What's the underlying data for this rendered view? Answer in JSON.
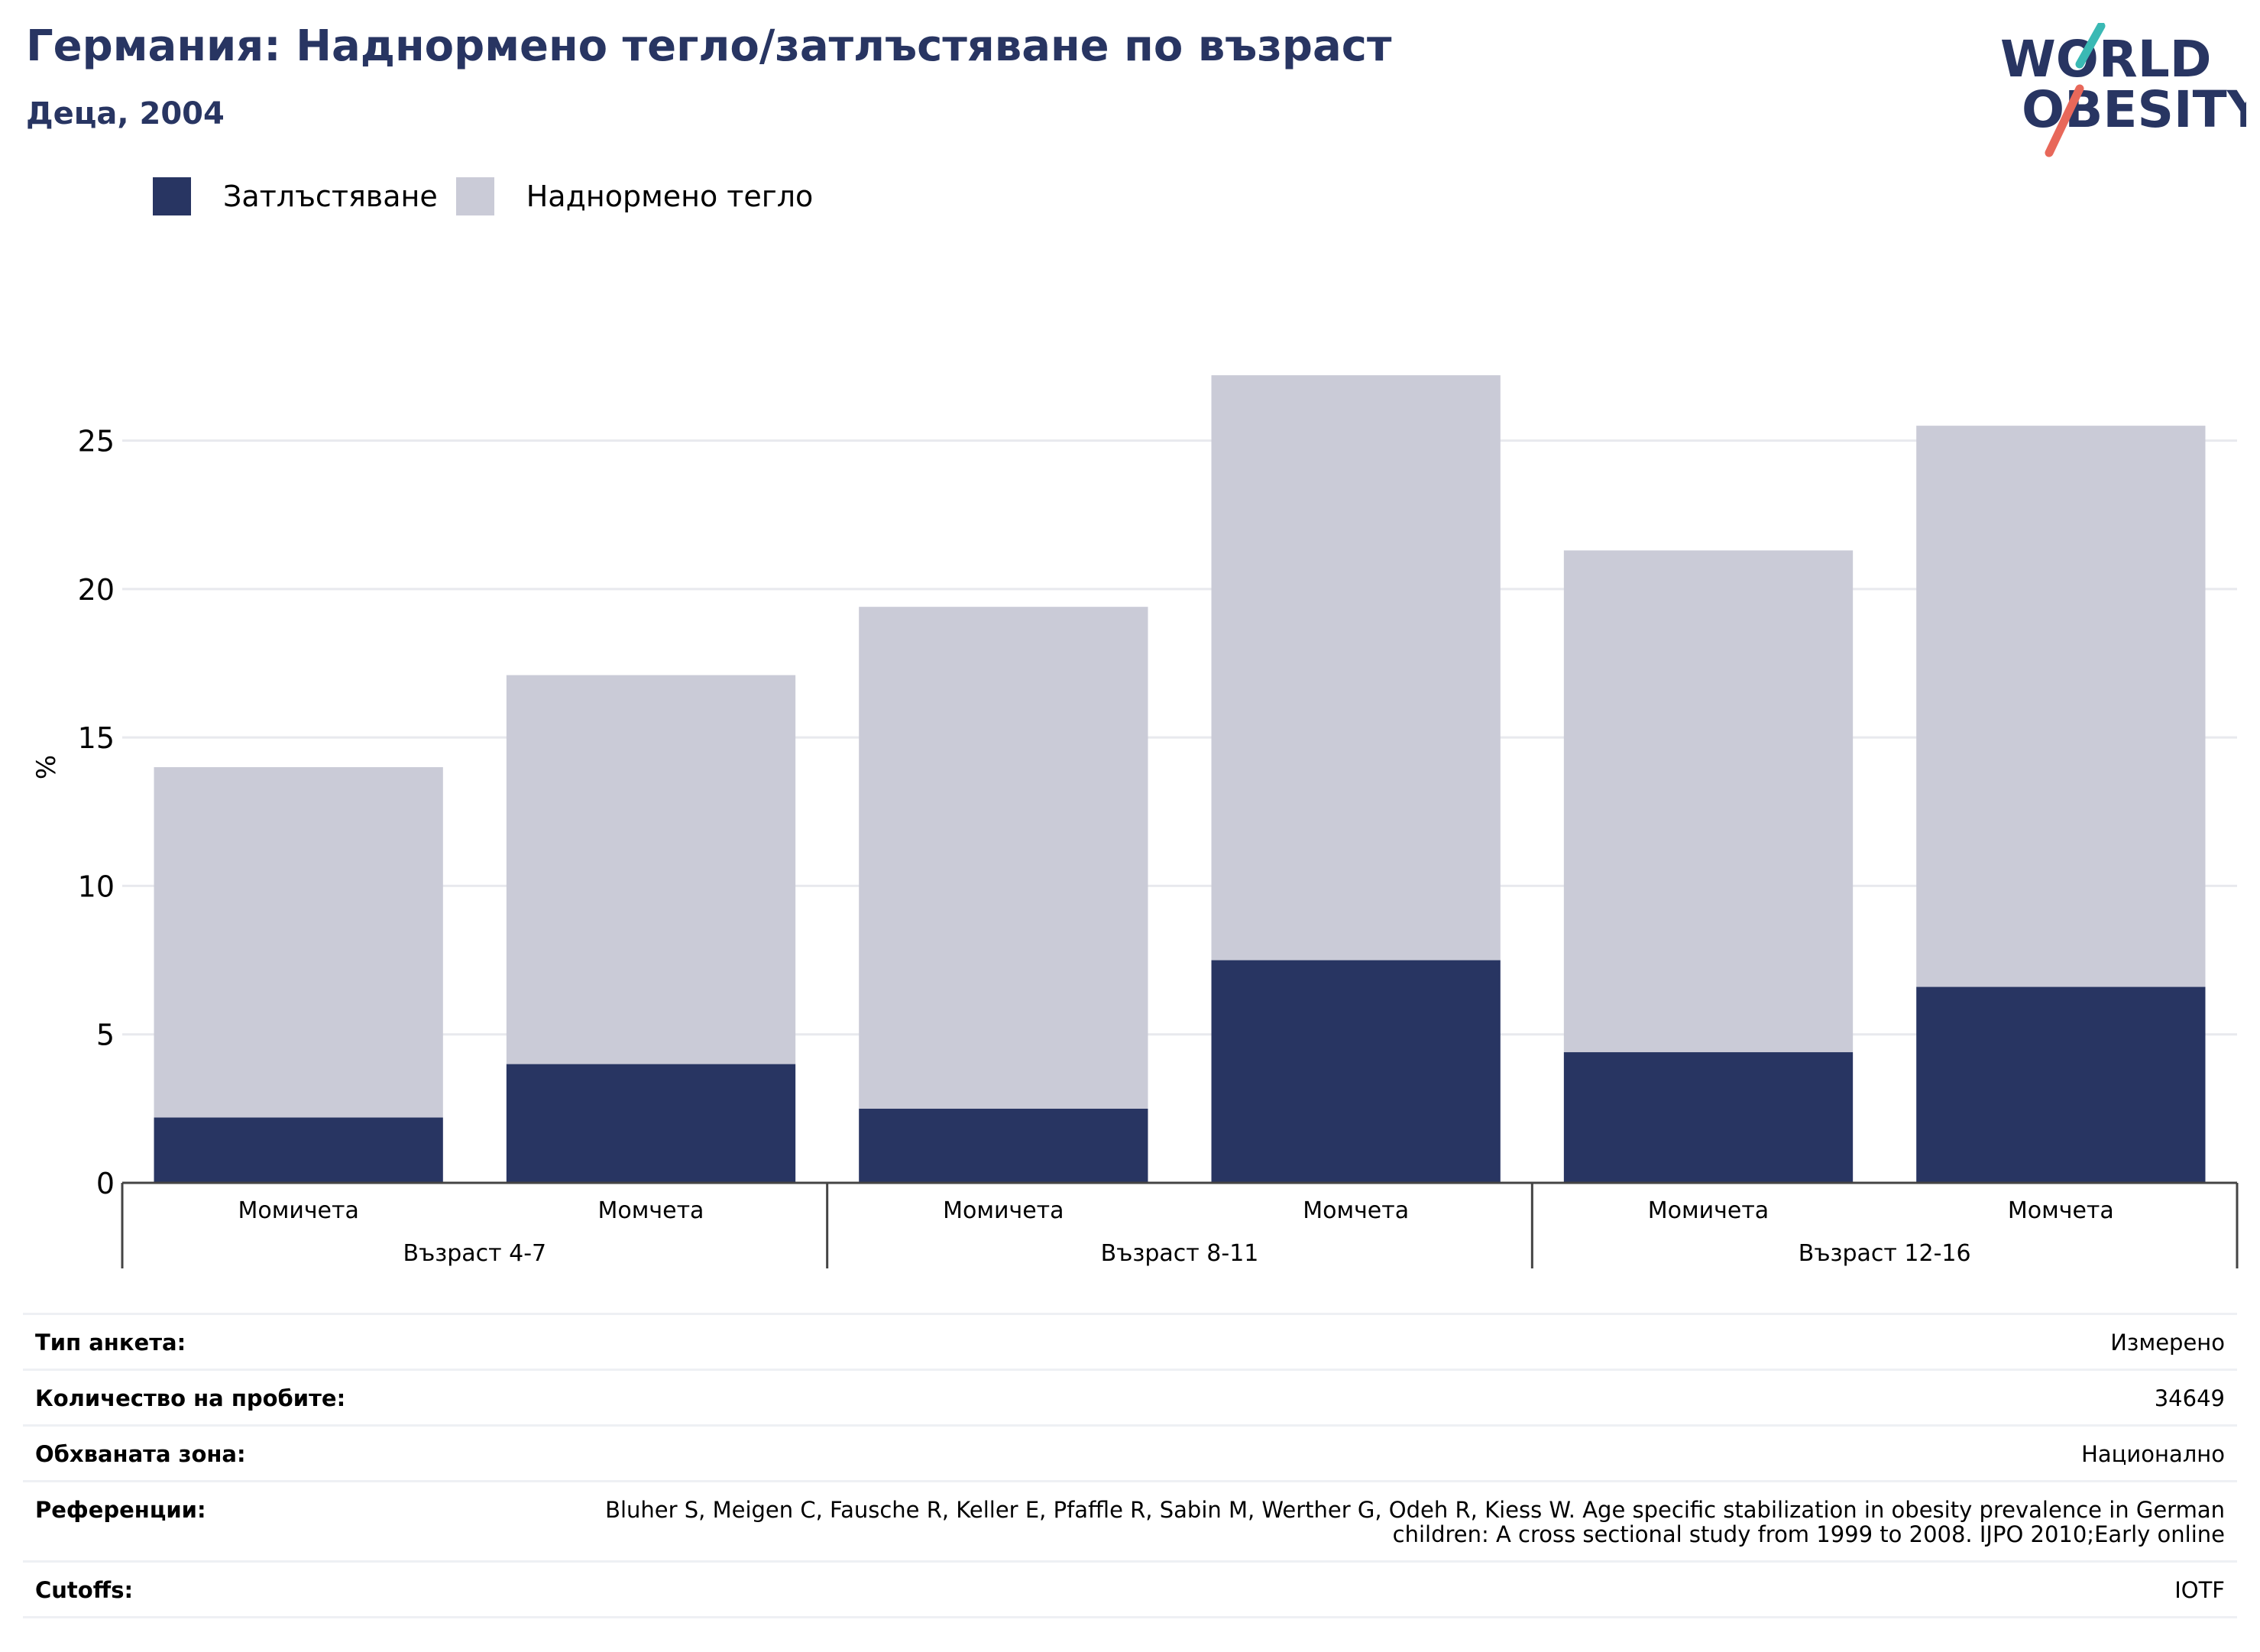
{
  "header": {
    "title": "Германия: Наднормено тегло/затлъстяване по възраст",
    "subtitle": "Деца, 2004"
  },
  "logo": {
    "line1": "WORLD",
    "line2": "OBESITY",
    "colors": {
      "text": "#283562",
      "slash_top": "#3ab9b4",
      "slash_bottom": "#e8685a"
    }
  },
  "colors": {
    "obesity": "#283562",
    "overweight": "#cacbd7",
    "grid": "#e8e9ee",
    "axis": "#444444"
  },
  "chart_data": {
    "type": "bar",
    "stacked": true,
    "ylabel": "%",
    "ylim": [
      0,
      28
    ],
    "yticks": [
      0,
      5,
      10,
      15,
      20,
      25
    ],
    "grid": true,
    "legend_position": "top-left",
    "series": [
      {
        "name": "Затлъстяване",
        "values": [
          2.2,
          4.0,
          2.5,
          7.5,
          4.4,
          6.6
        ]
      },
      {
        "name": "Наднормено тегло",
        "values": [
          11.8,
          13.1,
          16.9,
          19.7,
          16.9,
          18.9
        ]
      }
    ],
    "categories": [
      "Момичета",
      "Момчета",
      "Момичета",
      "Момчета",
      "Момичета",
      "Момчета"
    ],
    "groups": [
      {
        "label": "Възраст 4-7",
        "size": 2
      },
      {
        "label": "Възраст 8-11",
        "size": 2
      },
      {
        "label": "Възраст 12-16",
        "size": 2
      }
    ]
  },
  "meta": [
    {
      "label": "Тип анкета:",
      "value": "Измерено"
    },
    {
      "label": "Количество на пробите:",
      "value": "34649"
    },
    {
      "label": "Обхваната зона:",
      "value": "Национално"
    },
    {
      "label": "Референции:",
      "value": "Bluher S, Meigen C, Fausche R, Keller E, Pfaffle R, Sabin M, Werther G, Odeh R, Kiess W. Age specific stabilization in obesity prevalence in German children: A cross sectional study from 1999 to 2008. IJPO 2010;Early online"
    },
    {
      "label": "Cutoffs:",
      "value": "IOTF"
    }
  ]
}
